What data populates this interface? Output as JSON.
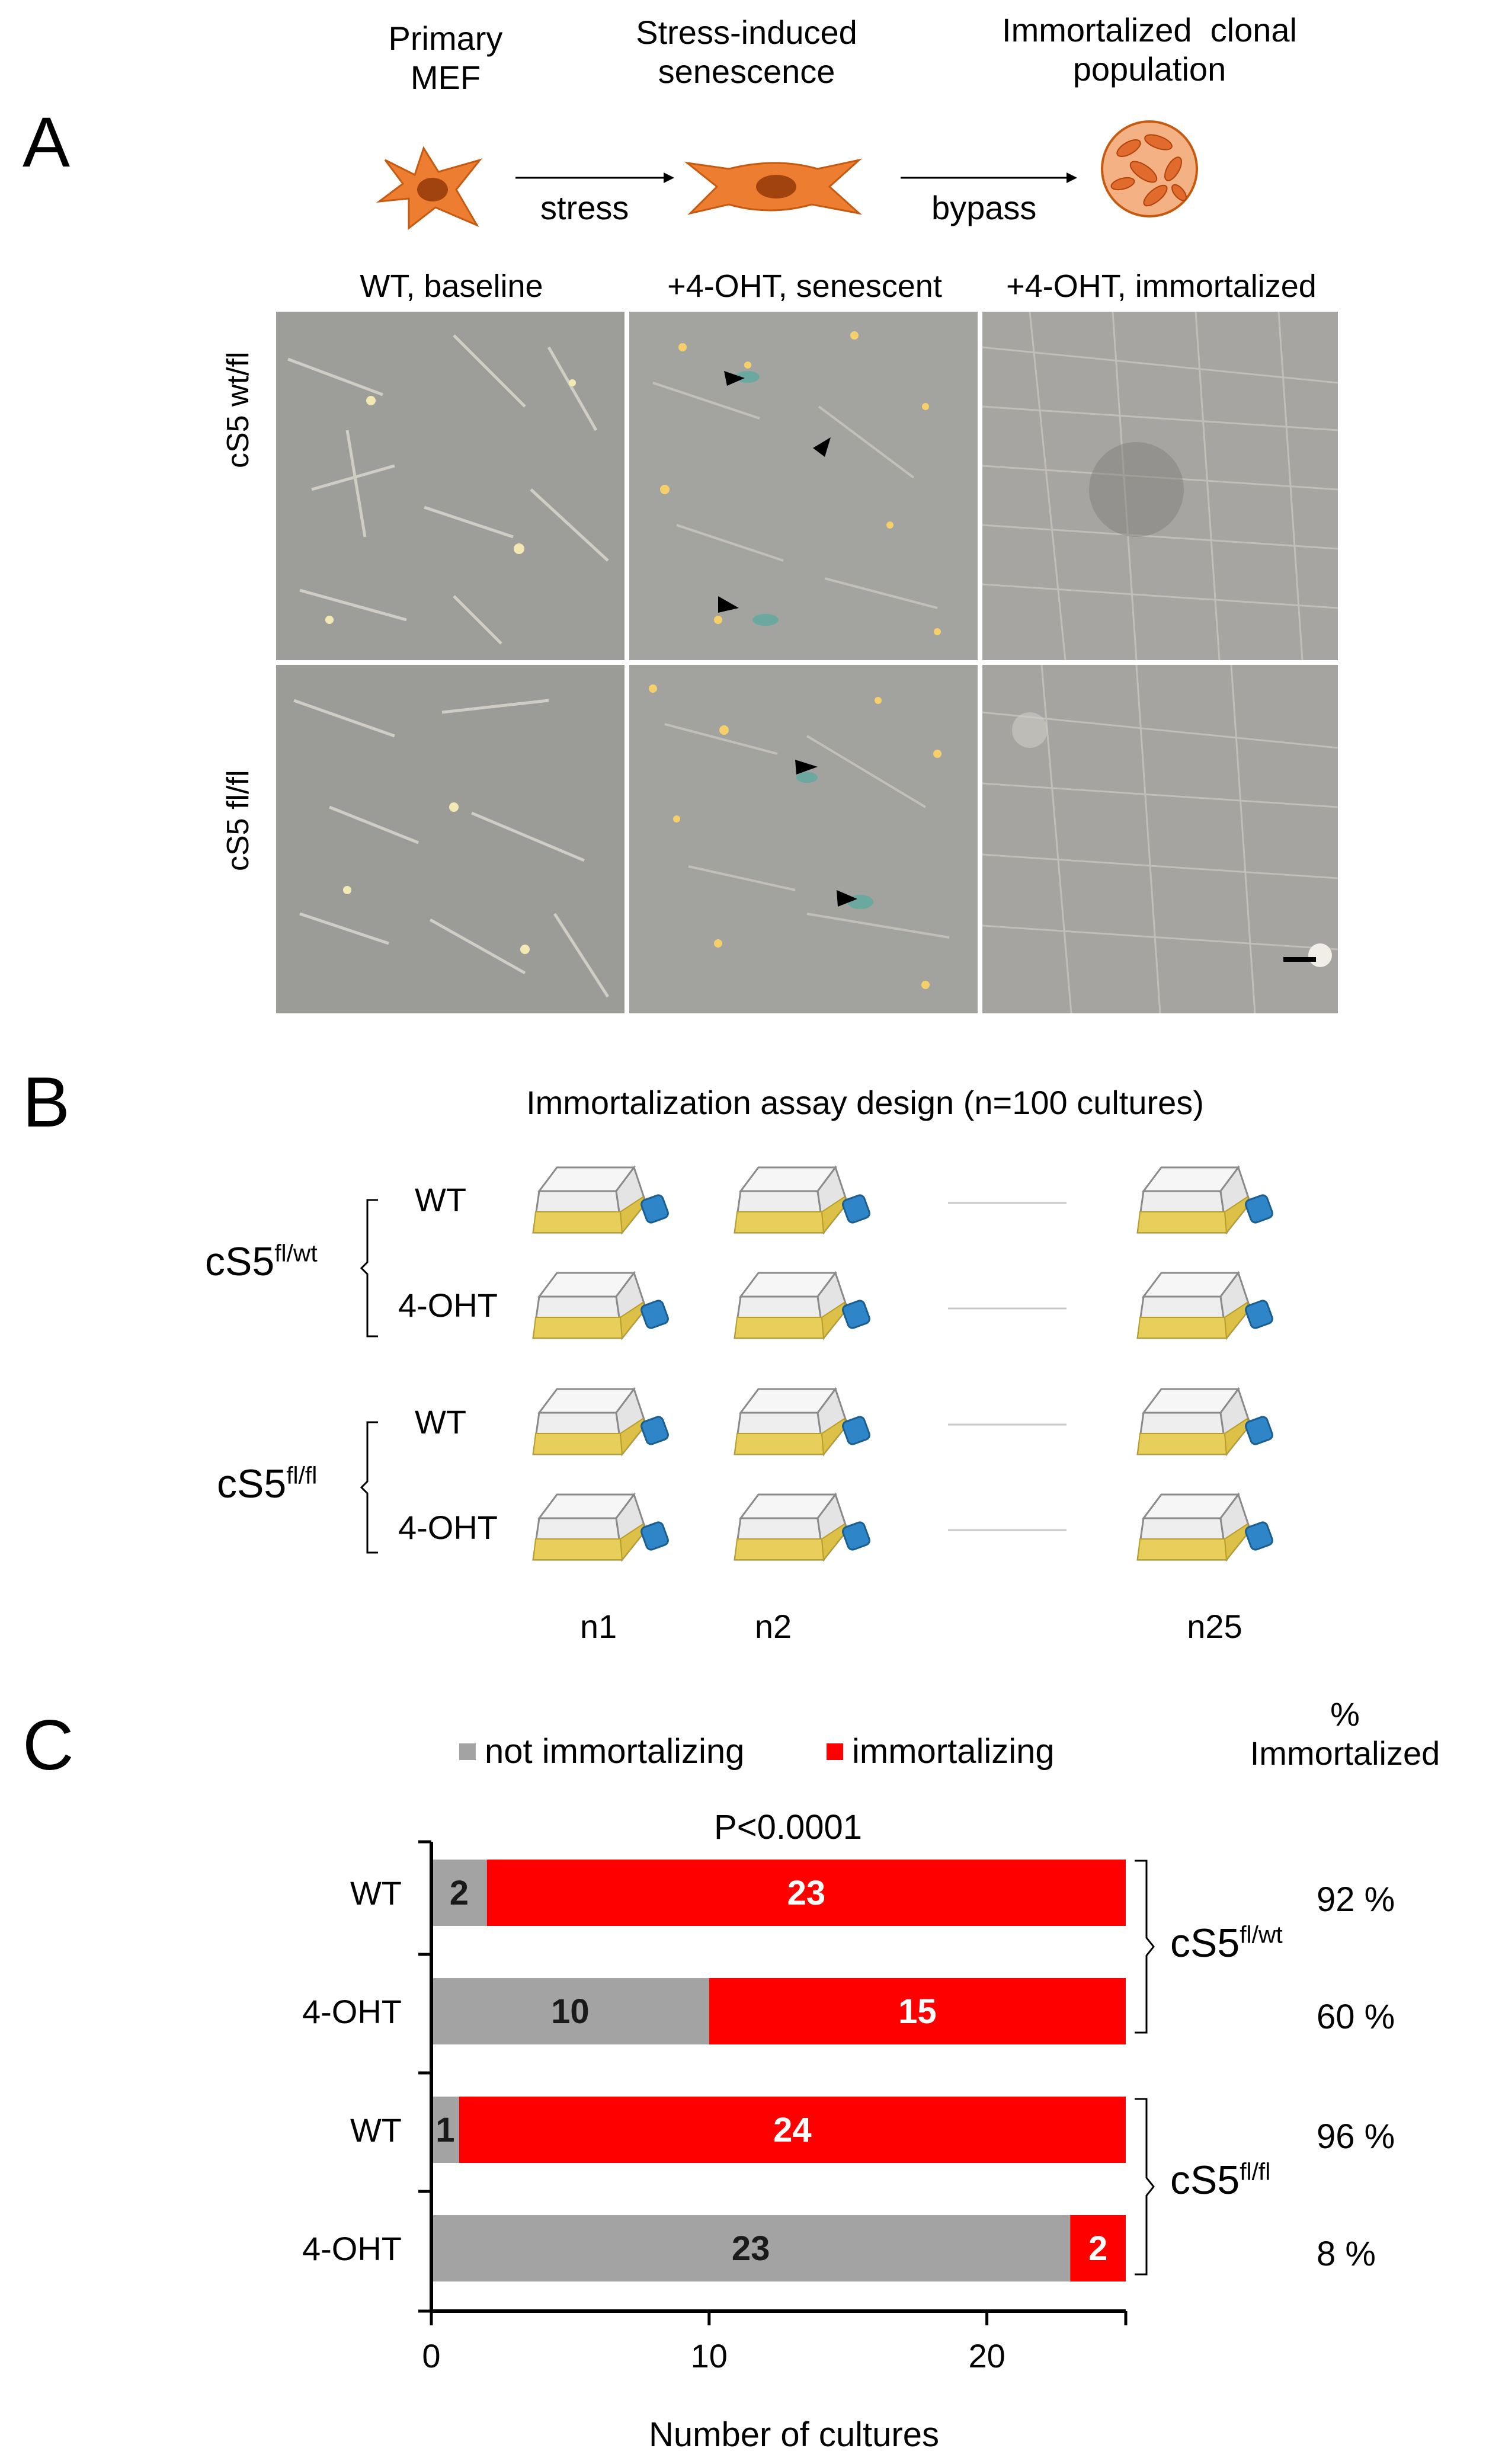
{
  "panel_a": {
    "letter": "A",
    "stage1": "Primary\nMEF",
    "stage2": "Stress-induced\nsenescence",
    "stage3": "Immortalized  clonal\npopulation",
    "arrow1": "stress",
    "arrow2": "bypass",
    "columns": [
      "WT, baseline",
      "+4-OHT, senescent",
      "+4-OHT, immortalized"
    ],
    "rows": [
      "cS5 wt/fl",
      "cS5 fl/fl"
    ]
  },
  "panel_b": {
    "letter": "B",
    "title": "Immortalization  assay design  (n=100 cultures)",
    "groups": [
      {
        "label_base": "cS5",
        "label_sup": "fl/wt",
        "rows": [
          "WT",
          "4-OHT"
        ]
      },
      {
        "label_base": "cS5",
        "label_sup": "fl/fl",
        "rows": [
          "WT",
          "4-OHT"
        ]
      }
    ],
    "col_labels": [
      "n1",
      "n2",
      "n25"
    ]
  },
  "panel_c": {
    "letter": "C",
    "pct_header": "%\nImmortalized",
    "group_labels": [
      {
        "base": "cS5",
        "sup": "fl/wt"
      },
      {
        "base": "cS5",
        "sup": "fl/fl"
      }
    ],
    "pct_values": [
      "92 %",
      "60 %",
      "96 %",
      "8 %"
    ],
    "colors": {
      "not_immortalizing": "#a3a3a3",
      "immortalizing": "#ff0000"
    }
  },
  "chart_data": {
    "type": "bar",
    "orientation": "horizontal",
    "stacked": true,
    "categories": [
      "WT",
      "4-OHT",
      "WT",
      "4-OHT"
    ],
    "series": [
      {
        "name": "not immortalizing",
        "values": [
          2,
          10,
          1,
          23
        ]
      },
      {
        "name": "immortalizing",
        "values": [
          23,
          15,
          24,
          2
        ]
      }
    ],
    "title": "P<0.0001",
    "xlabel": "Number of cultures",
    "ylabel": "",
    "xlim": [
      0,
      25
    ],
    "xticks": [
      "0",
      "10",
      "20"
    ],
    "legend": "top"
  }
}
